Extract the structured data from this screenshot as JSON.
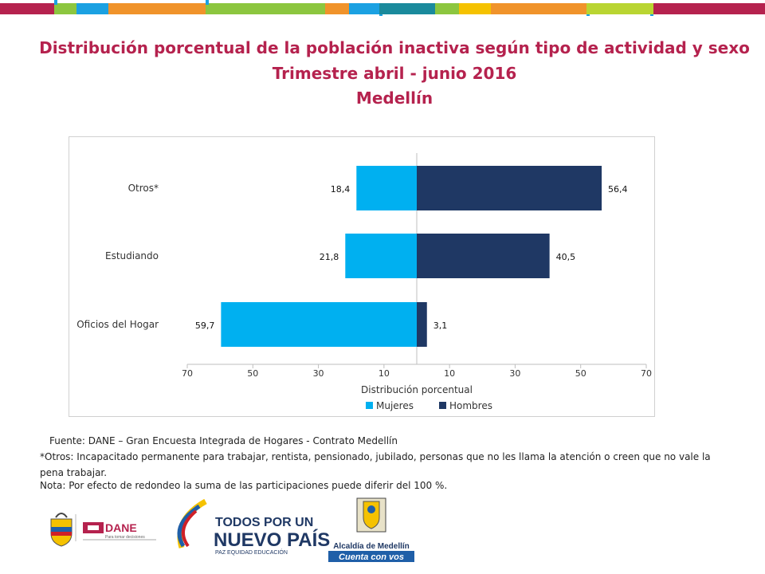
{
  "header": {
    "title": "Distribución porcentual de la población inactiva según tipo de actividad y sexo",
    "subtitle": "Trimestre abril - junio 2016",
    "city": "Medellín"
  },
  "colors": {
    "title": "#b5224e",
    "mujeres": "#00b0f0",
    "hombres": "#1f3864",
    "band": [
      "#b5224e",
      "#8cc63f",
      "#1ba1e2",
      "#f0932b",
      "#8cc63f",
      "#1a8a9c",
      "#f5c200",
      "#f0932b",
      "#b9d532"
    ]
  },
  "chart_data": {
    "type": "bar",
    "orientation": "horizontal-diverging",
    "categories": [
      "Otros*",
      "Estudiando",
      "Oficios del Hogar"
    ],
    "series": [
      {
        "name": "Mujeres",
        "values": [
          18.4,
          21.8,
          59.7
        ],
        "labels": [
          "18,4",
          "21,8",
          "59,7"
        ]
      },
      {
        "name": "Hombres",
        "values": [
          56.4,
          40.5,
          3.1
        ],
        "labels": [
          "56,4",
          "40,5",
          "3,1"
        ]
      }
    ],
    "xlabel": "Distribución porcentual",
    "xticks": [
      "70",
      "50",
      "30",
      "10",
      "10",
      "30",
      "50",
      "70"
    ],
    "xlim": [
      -70,
      70
    ],
    "legend_position": "bottom",
    "grid": false
  },
  "footer": {
    "source": "Fuente: DANE – Gran Encuesta Integrada de Hogares - Contrato Medellín",
    "note_otros": "*Otros: Incapacitado permanente para trabajar, rentista, pensionado, jubilado, personas que no les llama la atención o creen que no vale la pena trabajar.",
    "note_redondeo": "Nota: Por efecto de redondeo la suma de las participaciones puede diferir del 100 %."
  },
  "logos": {
    "dane": "DANE",
    "dane_tagline": "Para tomar decisiones",
    "gov_line1": "TODOS POR UN",
    "gov_line2": "NUEVO PAÍS",
    "gov_line3": "PAZ  EQUIDAD  EDUCACIÓN",
    "alcaldia_line1": "Alcaldía de Medellín",
    "alcaldia_line2": "Cuenta con vos"
  }
}
